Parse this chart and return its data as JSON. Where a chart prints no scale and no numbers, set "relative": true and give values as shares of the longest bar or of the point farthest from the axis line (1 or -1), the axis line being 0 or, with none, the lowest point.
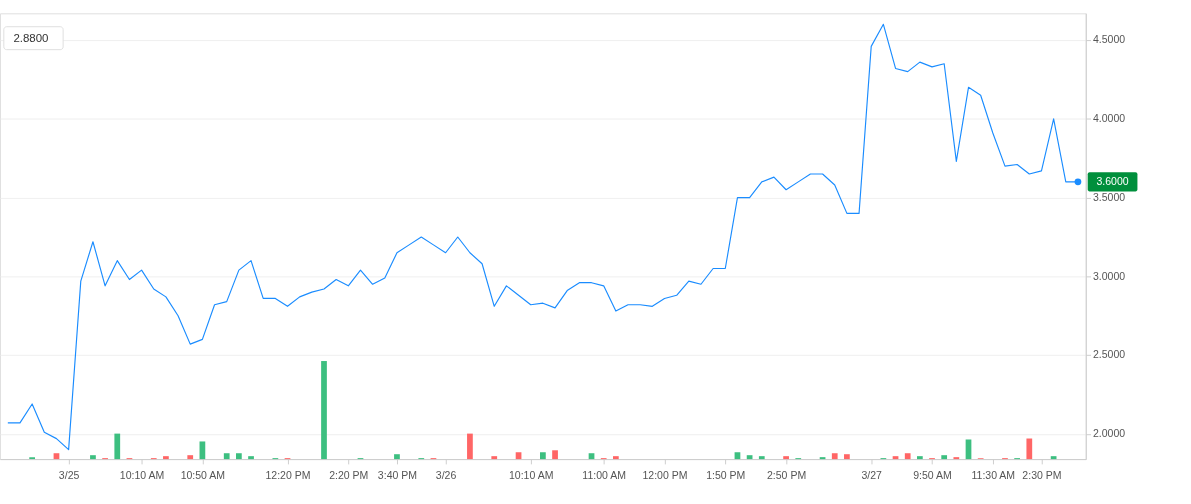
{
  "chart_data": [
    {
      "type": "line",
      "categories": [
        null,
        null,
        null,
        null,
        null,
        "3/25",
        null,
        null,
        null,
        null,
        null,
        "10:10 AM",
        null,
        null,
        null,
        null,
        "10:50 AM",
        null,
        null,
        null,
        null,
        null,
        null,
        "12:20 PM",
        null,
        null,
        null,
        null,
        "2:20 PM",
        null,
        null,
        null,
        "3:40 PM",
        null,
        null,
        null,
        "3/26",
        null,
        null,
        null,
        null,
        null,
        null,
        "10:10 AM",
        null,
        null,
        null,
        null,
        null,
        "11:00 AM",
        null,
        null,
        null,
        null,
        "12:00 PM",
        null,
        null,
        null,
        null,
        "1:50 PM",
        null,
        null,
        null,
        null,
        "2:50 PM",
        null,
        null,
        null,
        null,
        null,
        null,
        "3/27",
        null,
        null,
        null,
        null,
        "9:50 AM",
        null,
        null,
        null,
        null,
        "11:30 AM",
        null,
        null,
        null,
        "2:30 PM",
        null,
        null,
        null
      ],
      "series": [
        {
          "color": "#1a8cff",
          "values": [
            2.07,
            2.07,
            2.19,
            2.01,
            1.97,
            1.9,
            2.97,
            3.22,
            2.94,
            3.1,
            2.98,
            3.04,
            2.92,
            2.87,
            2.75,
            2.57,
            2.6,
            2.82,
            2.84,
            3.04,
            3.1,
            2.86,
            2.86,
            2.81,
            2.87,
            2.9,
            2.92,
            2.98,
            2.94,
            3.04,
            2.95,
            2.99,
            3.15,
            3.2,
            3.25,
            3.2,
            3.15,
            3.25,
            3.15,
            3.08,
            2.81,
            2.94,
            2.88,
            2.82,
            2.83,
            2.8,
            2.91,
            2.96,
            2.96,
            2.94,
            2.78,
            2.82,
            2.82,
            2.81,
            2.86,
            2.88,
            2.97,
            2.95,
            3.05,
            3.05,
            3.5,
            3.5,
            3.6,
            3.63,
            3.55,
            3.6,
            3.65,
            3.65,
            3.58,
            3.4,
            3.4,
            4.46,
            4.6,
            4.32,
            4.3,
            4.36,
            4.33,
            4.35,
            3.73,
            4.2,
            4.15,
            3.91,
            3.7,
            3.71,
            3.65,
            3.67,
            4.0,
            3.6,
            3.6
          ]
        }
      ],
      "ylim": [
        1.84,
        4.67
      ],
      "yticks": [
        {
          "value": 2.0,
          "label": "2.0000"
        },
        {
          "value": 2.5,
          "label": "2.5000"
        },
        {
          "value": 3.0,
          "label": "3.0000"
        },
        {
          "value": 3.5,
          "label": "3.5000"
        },
        {
          "value": 4.0,
          "label": "4.0000"
        },
        {
          "value": 4.5,
          "label": "4.5000"
        }
      ],
      "grid": "y",
      "annotations": [
        "2.8800",
        "3.6000"
      ]
    },
    {
      "type": "bar",
      "relative": true,
      "categories": [
        null,
        null,
        null,
        null,
        null,
        null,
        null,
        null,
        null,
        null,
        null,
        null,
        null,
        null,
        null,
        null,
        null,
        null,
        null,
        null,
        null,
        null,
        null,
        null,
        null,
        null,
        null,
        null,
        null,
        null,
        null,
        null,
        null,
        null,
        null,
        null,
        null,
        null,
        null,
        null,
        null,
        null,
        null,
        null,
        null,
        null,
        null,
        null,
        null,
        null,
        null,
        null,
        null,
        null,
        null,
        null,
        null,
        null,
        null,
        null,
        null,
        null,
        null,
        null,
        null,
        null,
        null,
        null,
        null,
        null,
        null,
        null,
        null,
        null,
        null,
        null,
        null,
        null,
        null,
        null,
        null,
        null,
        null,
        null,
        null,
        null,
        null,
        null,
        null
      ],
      "values": [
        null,
        null,
        0.02,
        null,
        0.06,
        null,
        null,
        0.04,
        0.01,
        0.26,
        0.01,
        null,
        0.01,
        0.03,
        null,
        0.04,
        0.18,
        null,
        0.06,
        0.06,
        0.03,
        null,
        0.01,
        0.01,
        null,
        null,
        1,
        null,
        null,
        0.01,
        null,
        null,
        0.05,
        null,
        0.01,
        0.01,
        null,
        null,
        0.26,
        null,
        0.03,
        null,
        0.07,
        null,
        0.07,
        0.09,
        null,
        null,
        0.06,
        0.01,
        0.03,
        null,
        null,
        null,
        null,
        null,
        null,
        null,
        null,
        null,
        0.07,
        0.04,
        0.03,
        null,
        0.03,
        0.01,
        null,
        0.02,
        0.06,
        0.05,
        null,
        null,
        0.01,
        0.03,
        0.06,
        0.03,
        0.01,
        0.04,
        0.02,
        0.2,
        0.01,
        null,
        0.01,
        0.01,
        0.21,
        null,
        0.03,
        null,
        null
      ],
      "colors": [
        null,
        null,
        "#3dbf80",
        null,
        "#ff6666",
        null,
        null,
        "#3dbf80",
        "#ff6666",
        "#3dbf80",
        "#ff6666",
        null,
        "#ff6666",
        "#ff6666",
        null,
        "#ff6666",
        "#3dbf80",
        null,
        "#3dbf80",
        "#3dbf80",
        "#3dbf80",
        null,
        "#3dbf80",
        "#ff6666",
        null,
        null,
        "#3dbf80",
        null,
        null,
        "#3dbf80",
        null,
        null,
        "#3dbf80",
        null,
        "#3dbf80",
        "#ff6666",
        null,
        null,
        "#ff6666",
        null,
        "#ff6666",
        null,
        "#ff6666",
        null,
        "#3dbf80",
        "#ff6666",
        null,
        null,
        "#3dbf80",
        "#ff6666",
        "#ff6666",
        null,
        null,
        null,
        null,
        null,
        null,
        null,
        null,
        null,
        "#3dbf80",
        "#3dbf80",
        "#3dbf80",
        null,
        "#ff6666",
        "#3dbf80",
        null,
        "#3dbf80",
        "#ff6666",
        "#ff6666",
        null,
        null,
        "#3dbf80",
        "#ff6666",
        "#ff6666",
        "#3dbf80",
        "#ff6666",
        "#3dbf80",
        "#ff6666",
        "#3dbf80",
        "#ff6666",
        null,
        "#ff6666",
        "#3dbf80",
        "#ff6666",
        null,
        "#3dbf80",
        null,
        null
      ]
    }
  ]
}
